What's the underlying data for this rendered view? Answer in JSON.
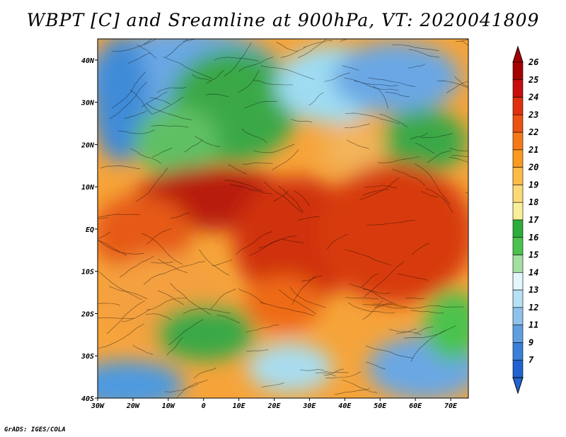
{
  "title": "WBPT [C] and Sreamline at 900hPa, VT: 2020041809",
  "footer": "GrADS: IGES/COLA",
  "map": {
    "lat_labels": [
      "40N",
      "30N",
      "20N",
      "10N",
      "EQ",
      "10S",
      "20S",
      "30S",
      "40S"
    ],
    "lon_labels": [
      "30W",
      "20W",
      "10W",
      "0",
      "10E",
      "20E",
      "30E",
      "40E",
      "50E",
      "60E",
      "70E"
    ],
    "lat_range": [
      -40,
      45
    ],
    "lon_range": [
      -30,
      75
    ]
  },
  "colorbar": {
    "labels": [
      "26",
      "25",
      "24",
      "23",
      "22",
      "21",
      "20",
      "19",
      "18",
      "17",
      "16",
      "15",
      "14",
      "13",
      "12",
      "11",
      "9",
      "7"
    ],
    "colors": [
      "#a50000",
      "#c80d0d",
      "#e0300f",
      "#ee5212",
      "#f57a17",
      "#fa9a1e",
      "#fbbb46",
      "#fcd977",
      "#f9ef9a",
      "#2eac3c",
      "#4cc24e",
      "#a3dfa2",
      "#e3f6fb",
      "#b6e0f5",
      "#8ec2ec",
      "#5e9fe0",
      "#3a80d8",
      "#2163d0"
    ]
  },
  "colors": {
    "warm_core": "#d73a0e",
    "hot": "#b81e0c",
    "cool_ocean": "#4e9ae0",
    "land_green": "#3aa847"
  }
}
